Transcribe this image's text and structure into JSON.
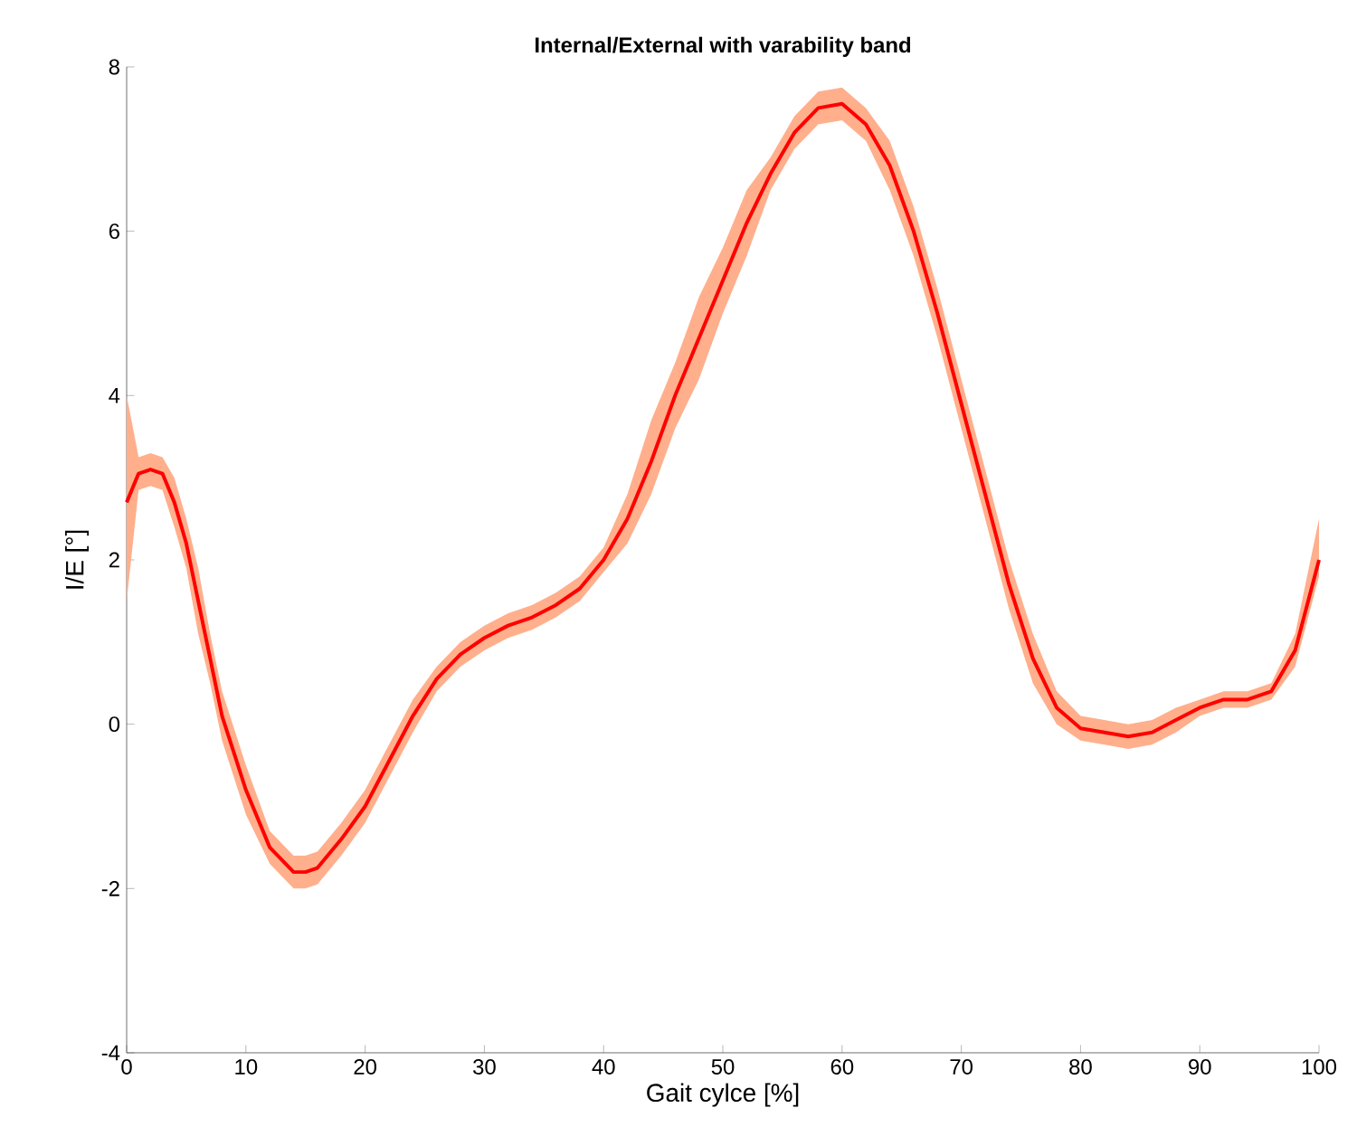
{
  "chart_data": {
    "type": "line",
    "title": "Internal/External with varability band",
    "xlabel": "Gait cylce [%]",
    "ylabel": "I/E [°]",
    "xlim": [
      0,
      100
    ],
    "ylim": [
      -4,
      8
    ],
    "xticks": [
      0,
      10,
      20,
      30,
      40,
      50,
      60,
      70,
      80,
      90,
      100
    ],
    "yticks": [
      -4,
      -2,
      0,
      2,
      4,
      6,
      8
    ],
    "grid": false,
    "series": [
      {
        "color": "#ff0000",
        "x": [
          0,
          1,
          2,
          3,
          4,
          5,
          6,
          7,
          8,
          10,
          12,
          14,
          15,
          16,
          18,
          20,
          22,
          24,
          26,
          28,
          30,
          32,
          34,
          36,
          38,
          40,
          42,
          44,
          46,
          48,
          50,
          52,
          54,
          56,
          58,
          60,
          62,
          64,
          66,
          68,
          70,
          72,
          74,
          76,
          78,
          80,
          82,
          84,
          86,
          88,
          90,
          92,
          94,
          96,
          98,
          100
        ],
        "values": [
          2.7,
          3.05,
          3.1,
          3.05,
          2.7,
          2.2,
          1.5,
          0.8,
          0.1,
          -0.8,
          -1.5,
          -1.8,
          -1.8,
          -1.75,
          -1.4,
          -1.0,
          -0.45,
          0.1,
          0.55,
          0.85,
          1.05,
          1.2,
          1.3,
          1.45,
          1.65,
          2.0,
          2.5,
          3.2,
          4.0,
          4.7,
          5.4,
          6.1,
          6.7,
          7.2,
          7.5,
          7.55,
          7.3,
          6.8,
          6.0,
          5.0,
          3.9,
          2.8,
          1.7,
          0.8,
          0.2,
          -0.05,
          -0.1,
          -0.15,
          -0.1,
          0.05,
          0.2,
          0.3,
          0.3,
          0.4,
          0.9,
          2.0
        ],
        "lower": [
          1.5,
          2.85,
          2.9,
          2.85,
          2.4,
          1.9,
          1.1,
          0.5,
          -0.2,
          -1.1,
          -1.7,
          -2.0,
          -2.0,
          -1.95,
          -1.6,
          -1.2,
          -0.65,
          -0.1,
          0.4,
          0.7,
          0.9,
          1.05,
          1.15,
          1.3,
          1.5,
          1.85,
          2.2,
          2.8,
          3.6,
          4.2,
          5.0,
          5.7,
          6.5,
          7.0,
          7.3,
          7.35,
          7.1,
          6.5,
          5.7,
          4.7,
          3.6,
          2.5,
          1.4,
          0.5,
          0.0,
          -0.2,
          -0.25,
          -0.3,
          -0.25,
          -0.1,
          0.1,
          0.2,
          0.2,
          0.3,
          0.7,
          1.8
        ],
        "upper": [
          4.0,
          3.25,
          3.3,
          3.25,
          3.0,
          2.5,
          1.9,
          1.1,
          0.4,
          -0.5,
          -1.3,
          -1.6,
          -1.6,
          -1.55,
          -1.2,
          -0.8,
          -0.25,
          0.3,
          0.7,
          1.0,
          1.2,
          1.35,
          1.45,
          1.6,
          1.8,
          2.15,
          2.8,
          3.7,
          4.4,
          5.2,
          5.8,
          6.5,
          6.9,
          7.4,
          7.7,
          7.75,
          7.5,
          7.1,
          6.3,
          5.3,
          4.2,
          3.1,
          2.0,
          1.1,
          0.4,
          0.1,
          0.05,
          0.0,
          0.05,
          0.2,
          0.3,
          0.4,
          0.4,
          0.5,
          1.1,
          2.5
        ]
      }
    ]
  }
}
